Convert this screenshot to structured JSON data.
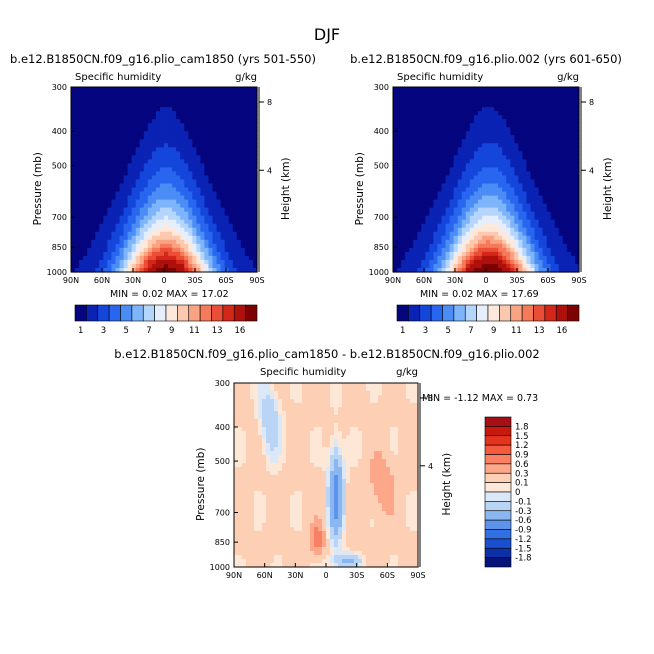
{
  "page_title": "DJF",
  "chart_data": [
    {
      "type": "heatmap",
      "title": "b.e12.B1850CN.f09_g16.plio_cam1850 (yrs 501-550)",
      "left_label": "Specific humidity",
      "right_label": "g/kg",
      "ylabel": "Pressure (mb)",
      "ylabel_right": "Height (km)",
      "x_ticks": [
        "90N",
        "60N",
        "30N",
        "0",
        "30S",
        "60S",
        "90S"
      ],
      "y_ticks": [
        "300",
        "400",
        "500",
        "700",
        "850",
        "1000"
      ],
      "height_ticks": [
        "8",
        "4"
      ],
      "min_text": "MIN =",
      "min_value": "0.02",
      "max_text": "MAX =",
      "max_value": "17.02",
      "colorbar_levels": [
        "1",
        "3",
        "5",
        "7",
        "9",
        "11",
        "13",
        "16"
      ],
      "colorbar_colors": [
        "#05057f",
        "#0a23b4",
        "#1446dc",
        "#2866f0",
        "#4b8cf5",
        "#7eb4fa",
        "#b4d6fc",
        "#e6eefb",
        "#fde8dc",
        "#fcc8ae",
        "#faa383",
        "#f47a5a",
        "#ea4e37",
        "#d32719",
        "#b0100b",
        "#7d0303"
      ]
    },
    {
      "type": "heatmap",
      "title": "b.e12.B1850CN.f09_g16.plio.002 (yrs 601-650)",
      "left_label": "Specific humidity",
      "right_label": "g/kg",
      "ylabel": "Pressure (mb)",
      "ylabel_right": "Height (km)",
      "x_ticks": [
        "90N",
        "60N",
        "30N",
        "0",
        "30S",
        "60S",
        "90S"
      ],
      "y_ticks": [
        "300",
        "400",
        "500",
        "700",
        "850",
        "1000"
      ],
      "height_ticks": [
        "8",
        "4"
      ],
      "min_text": "MIN =",
      "min_value": "0.02",
      "max_text": "MAX =",
      "max_value": "17.69",
      "colorbar_levels": [
        "1",
        "3",
        "5",
        "7",
        "9",
        "11",
        "13",
        "16"
      ],
      "colorbar_colors": [
        "#05057f",
        "#0a23b4",
        "#1446dc",
        "#2866f0",
        "#4b8cf5",
        "#7eb4fa",
        "#b4d6fc",
        "#e6eefb",
        "#fde8dc",
        "#fcc8ae",
        "#faa383",
        "#f47a5a",
        "#ea4e37",
        "#d32719",
        "#b0100b",
        "#7d0303"
      ]
    },
    {
      "type": "heatmap",
      "title": "b.e12.B1850CN.f09_g16.plio_cam1850 - b.e12.B1850CN.f09_g16.plio.002",
      "left_label": "Specific humidity",
      "right_label": "g/kg",
      "ylabel": "Pressure (mb)",
      "ylabel_right": "Height (km)",
      "x_ticks": [
        "90N",
        "60N",
        "30N",
        "0",
        "30S",
        "60S",
        "90S"
      ],
      "y_ticks": [
        "300",
        "400",
        "500",
        "700",
        "850",
        "1000"
      ],
      "height_ticks": [
        "8",
        "4"
      ],
      "min_text": "MIN =",
      "min_value": "-1.12",
      "max_text": "MAX =",
      "max_value": "0.73",
      "colorbar_levels": [
        "1.8",
        "1.5",
        "1.2",
        "0.9",
        "0.6",
        "0.3",
        "0.1",
        "0",
        "-0.1",
        "-0.3",
        "-0.6",
        "-0.9",
        "-1.2",
        "-1.5",
        "-1.8"
      ],
      "colorbar_colors": [
        "#a50f15",
        "#c8190f",
        "#e6331e",
        "#f55a3c",
        "#fa8064",
        "#fca78a",
        "#fdcfb4",
        "#fde8d8",
        "#dbe8f8",
        "#b9d4f5",
        "#8ab7f0",
        "#5b94ea",
        "#3170e2",
        "#1a4fd0",
        "#0b30a8",
        "#05147a"
      ]
    }
  ]
}
